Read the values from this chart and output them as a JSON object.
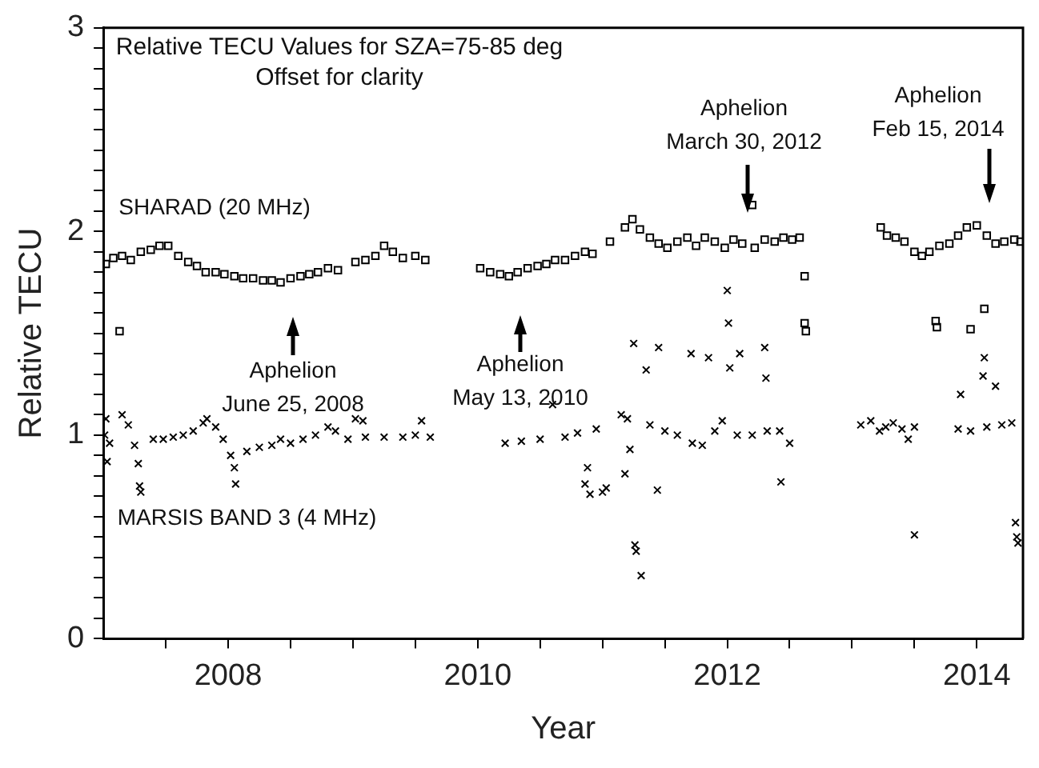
{
  "chart_data": {
    "type": "scatter",
    "title": "Relative TECU Values for SZA=75-85 deg",
    "subtitle": "Offset for clarity",
    "xlabel": "Year",
    "ylabel": "Relative TECU",
    "xlim": [
      2007,
      2014.37
    ],
    "xticks": [
      {
        "value": 2007.5,
        "label": null
      },
      2008,
      {
        "value": 2008.5,
        "label": null
      },
      {
        "value": 2009,
        "label": null
      },
      {
        "value": 2009.5,
        "label": null
      },
      2010,
      {
        "value": 2010.5,
        "label": null
      },
      {
        "value": 2011,
        "label": null
      },
      {
        "value": 2011.5,
        "label": null
      },
      2012,
      {
        "value": 2012.5,
        "label": null
      },
      {
        "value": 2013,
        "label": null
      },
      {
        "value": 2013.5,
        "label": null
      },
      2014
    ],
    "ylim": [
      0,
      3
    ],
    "yticks": [
      0,
      {
        "value": 0.1,
        "label": null
      },
      {
        "value": 0.2,
        "label": null
      },
      {
        "value": 0.3,
        "label": null
      },
      {
        "value": 0.4,
        "label": null
      },
      {
        "value": 0.5,
        "label": null
      },
      {
        "value": 0.6,
        "label": null
      },
      {
        "value": 0.7,
        "label": null
      },
      {
        "value": 0.8,
        "label": null
      },
      {
        "value": 0.9,
        "label": null
      },
      1,
      {
        "value": 1.1,
        "label": null
      },
      {
        "value": 1.2,
        "label": null
      },
      {
        "value": 1.3,
        "label": null
      },
      {
        "value": 1.4,
        "label": null
      },
      {
        "value": 1.5,
        "label": null
      },
      {
        "value": 1.6,
        "label": null
      },
      {
        "value": 1.7,
        "label": null
      },
      {
        "value": 1.8,
        "label": null
      },
      {
        "value": 1.9,
        "label": null
      },
      2,
      {
        "value": 2.1,
        "label": null
      },
      {
        "value": 2.2,
        "label": null
      },
      {
        "value": 2.3,
        "label": null
      },
      {
        "value": 2.4,
        "label": null
      },
      {
        "value": 2.5,
        "label": null
      },
      {
        "value": 2.6,
        "label": null
      },
      {
        "value": 2.7,
        "label": null
      },
      {
        "value": 2.8,
        "label": null
      },
      {
        "value": 2.9,
        "label": null
      },
      3
    ],
    "grid": false,
    "legend": false,
    "series": [
      {
        "name": "SHARAD (20 MHz)",
        "color": "#000000",
        "marker": "square",
        "x": [
          2007.02,
          2007.08,
          2007.13,
          2007.15,
          2007.22,
          2007.3,
          2007.38,
          2007.45,
          2007.52,
          2007.6,
          2007.68,
          2007.75,
          2007.82,
          2007.9,
          2007.97,
          2008.05,
          2008.12,
          2008.2,
          2008.28,
          2008.35,
          2008.42,
          2008.5,
          2008.58,
          2008.65,
          2008.72,
          2008.8,
          2008.88,
          2009.02,
          2009.1,
          2009.18,
          2009.25,
          2009.32,
          2009.4,
          2009.5,
          2009.58,
          2010.02,
          2010.1,
          2010.18,
          2010.25,
          2010.32,
          2010.4,
          2010.48,
          2010.55,
          2010.62,
          2010.7,
          2010.78,
          2010.86,
          2010.92,
          2011.06,
          2011.18,
          2011.24,
          2011.3,
          2011.38,
          2011.45,
          2011.52,
          2011.6,
          2011.68,
          2011.75,
          2011.82,
          2011.9,
          2011.98,
          2012.05,
          2012.12,
          2012.2,
          2012.22,
          2012.3,
          2012.38,
          2012.45,
          2012.52,
          2012.58,
          2012.62,
          2012.62,
          2012.63,
          2013.23,
          2013.28,
          2013.35,
          2013.42,
          2013.5,
          2013.56,
          2013.62,
          2013.67,
          2013.68,
          2013.7,
          2013.78,
          2013.85,
          2013.92,
          2013.95,
          2014.0,
          2014.06,
          2014.08,
          2014.15,
          2014.22,
          2014.3,
          2014.35
        ],
        "values": [
          1.84,
          1.87,
          1.51,
          1.88,
          1.86,
          1.9,
          1.91,
          1.93,
          1.93,
          1.88,
          1.85,
          1.83,
          1.8,
          1.8,
          1.79,
          1.78,
          1.77,
          1.77,
          1.76,
          1.76,
          1.75,
          1.77,
          1.78,
          1.79,
          1.8,
          1.82,
          1.81,
          1.85,
          1.86,
          1.88,
          1.93,
          1.9,
          1.87,
          1.88,
          1.86,
          1.82,
          1.8,
          1.79,
          1.78,
          1.8,
          1.82,
          1.83,
          1.84,
          1.86,
          1.86,
          1.88,
          1.9,
          1.89,
          1.95,
          2.02,
          2.06,
          2.01,
          1.97,
          1.94,
          1.92,
          1.95,
          1.97,
          1.93,
          1.97,
          1.95,
          1.92,
          1.96,
          1.94,
          2.13,
          1.92,
          1.96,
          1.95,
          1.97,
          1.96,
          1.97,
          1.78,
          1.55,
          1.51,
          2.02,
          1.98,
          1.97,
          1.95,
          1.9,
          1.88,
          1.9,
          1.56,
          1.53,
          1.93,
          1.94,
          1.98,
          2.02,
          1.52,
          2.03,
          1.62,
          1.98,
          1.94,
          1.95,
          1.96,
          1.95
        ]
      },
      {
        "name": "MARSIS BAND 3 (4 MHz)",
        "color": "#000000",
        "marker": "cross",
        "x": [
          2007.01,
          2007.02,
          2007.03,
          2007.05,
          2007.15,
          2007.2,
          2007.25,
          2007.28,
          2007.29,
          2007.3,
          2007.4,
          2007.48,
          2007.56,
          2007.64,
          2007.72,
          2007.8,
          2007.83,
          2007.9,
          2007.96,
          2008.02,
          2008.05,
          2008.06,
          2008.15,
          2008.25,
          2008.35,
          2008.42,
          2008.5,
          2008.6,
          2008.7,
          2008.8,
          2008.86,
          2008.96,
          2009.02,
          2009.08,
          2009.1,
          2009.25,
          2009.4,
          2009.5,
          2009.55,
          2009.62,
          2010.22,
          2010.35,
          2010.5,
          2010.6,
          2010.7,
          2010.8,
          2010.86,
          2010.88,
          2010.9,
          2010.95,
          2011.0,
          2011.03,
          2011.15,
          2011.18,
          2011.2,
          2011.22,
          2011.25,
          2011.26,
          2011.27,
          2011.31,
          2011.35,
          2011.38,
          2011.44,
          2011.45,
          2011.5,
          2011.6,
          2011.71,
          2011.72,
          2011.8,
          2011.85,
          2011.9,
          2011.96,
          2012.0,
          2012.01,
          2012.02,
          2012.08,
          2012.1,
          2012.2,
          2012.3,
          2012.31,
          2012.32,
          2012.42,
          2012.43,
          2012.5,
          2013.07,
          2013.15,
          2013.22,
          2013.27,
          2013.33,
          2013.4,
          2013.45,
          2013.5,
          2013.5,
          2013.85,
          2013.87,
          2013.95,
          2014.05,
          2014.06,
          2014.08,
          2014.15,
          2014.2,
          2014.28,
          2014.31,
          2014.32,
          2014.33
        ],
        "values": [
          1.0,
          1.08,
          0.87,
          0.96,
          1.1,
          1.05,
          0.95,
          0.86,
          0.75,
          0.72,
          0.98,
          0.98,
          0.99,
          1.0,
          1.02,
          1.06,
          1.08,
          1.04,
          0.98,
          0.9,
          0.84,
          0.76,
          0.92,
          0.94,
          0.95,
          0.98,
          0.96,
          0.98,
          1.0,
          1.04,
          1.02,
          0.98,
          1.08,
          1.07,
          0.99,
          0.99,
          0.99,
          1.0,
          1.07,
          0.99,
          0.96,
          0.97,
          0.98,
          1.15,
          0.99,
          1.01,
          0.76,
          0.84,
          0.71,
          1.03,
          0.72,
          0.74,
          1.1,
          0.81,
          1.08,
          0.93,
          1.45,
          0.46,
          0.43,
          0.31,
          1.32,
          1.05,
          0.73,
          1.43,
          1.02,
          1.0,
          1.4,
          0.96,
          0.95,
          1.38,
          1.02,
          1.07,
          1.71,
          1.55,
          1.33,
          1.0,
          1.4,
          1.0,
          1.43,
          1.28,
          1.02,
          1.02,
          0.77,
          0.96,
          1.05,
          1.07,
          1.02,
          1.04,
          1.06,
          1.03,
          0.98,
          0.51,
          1.04,
          1.03,
          1.2,
          1.02,
          1.29,
          1.38,
          1.04,
          1.24,
          1.05,
          1.06,
          0.57,
          0.5,
          0.47
        ]
      }
    ],
    "annotations": [
      "Aphelion\nJune 25, 2008",
      "Aphelion\nMay 13, 2010",
      {
        "text": "Aphelion\nMarch 30, 2012",
        "x": 2012.16,
        "y": 2.09
      },
      "Aphelion\nFeb 15, 2014"
    ]
  }
}
